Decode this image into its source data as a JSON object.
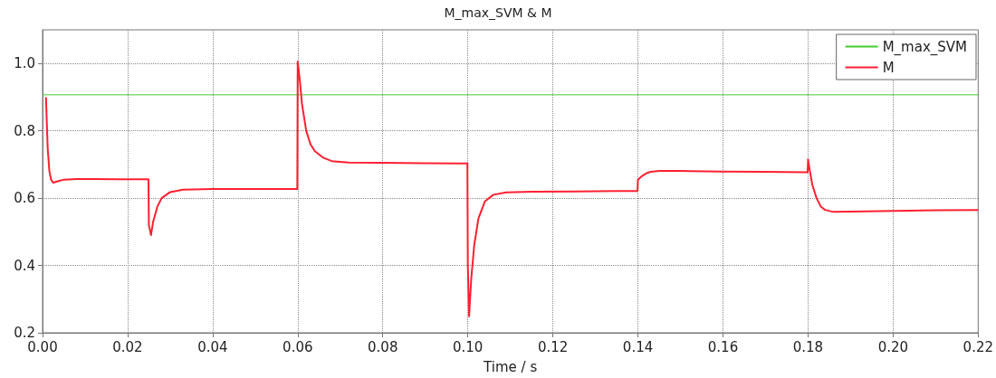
{
  "chart_data": {
    "type": "line",
    "title": "M_max_SVM & M",
    "xlabel": "Time / s",
    "xlim": [
      0,
      0.22
    ],
    "xticks": [
      {
        "value": 0,
        "label": "0.00"
      },
      0.02,
      0.04,
      0.06,
      0.08,
      {
        "value": 0.1,
        "label": "0.10"
      },
      0.12,
      0.14,
      0.16,
      0.18,
      {
        "value": 0.2,
        "label": "0.20"
      },
      0.22
    ],
    "ylim": [
      0.2,
      1.1
    ],
    "yticks": [
      0.2,
      0.4,
      0.6,
      0.8,
      {
        "value": 1,
        "label": "1.0"
      }
    ],
    "grid": true,
    "legend": "top right",
    "line_style": "solid",
    "marker": "none",
    "series": [
      {
        "name": "M_max_SVM",
        "color": "#44cc33",
        "x": [
          0,
          0.22
        ],
        "values": [
          0.907,
          0.907
        ]
      },
      {
        "name": "M",
        "color": "#ff2030",
        "x": [
          0.0008,
          0.0012,
          0.0016,
          0.002,
          0.0025,
          0.0035,
          0.005,
          0.008,
          0.012,
          0.018,
          0.0249,
          0.025,
          0.0255,
          0.026,
          0.027,
          0.028,
          0.03,
          0.033,
          0.04,
          0.05,
          0.0599,
          0.06,
          0.0605,
          0.061,
          0.062,
          0.063,
          0.064,
          0.066,
          0.068,
          0.072,
          0.08,
          0.09,
          0.0999,
          0.1,
          0.1003,
          0.1008,
          0.1015,
          0.1025,
          0.104,
          0.106,
          0.109,
          0.115,
          0.125,
          0.135,
          0.1399,
          0.14,
          0.141,
          0.142,
          0.143,
          0.145,
          0.15,
          0.16,
          0.17,
          0.1799,
          0.18,
          0.1803,
          0.181,
          0.182,
          0.183,
          0.184,
          0.186,
          0.19,
          0.2,
          0.21,
          0.22
        ],
        "values": [
          0.9,
          0.75,
          0.68,
          0.655,
          0.646,
          0.65,
          0.655,
          0.657,
          0.657,
          0.656,
          0.656,
          0.52,
          0.49,
          0.53,
          0.575,
          0.6,
          0.618,
          0.625,
          0.627,
          0.627,
          0.627,
          1.006,
          0.95,
          0.88,
          0.8,
          0.76,
          0.74,
          0.72,
          0.71,
          0.706,
          0.705,
          0.704,
          0.703,
          0.4,
          0.249,
          0.36,
          0.46,
          0.54,
          0.59,
          0.61,
          0.617,
          0.619,
          0.62,
          0.621,
          0.621,
          0.655,
          0.666,
          0.674,
          0.678,
          0.681,
          0.681,
          0.679,
          0.678,
          0.677,
          0.715,
          0.69,
          0.64,
          0.6,
          0.575,
          0.565,
          0.559,
          0.56,
          0.562,
          0.564,
          0.565
        ]
      }
    ]
  }
}
